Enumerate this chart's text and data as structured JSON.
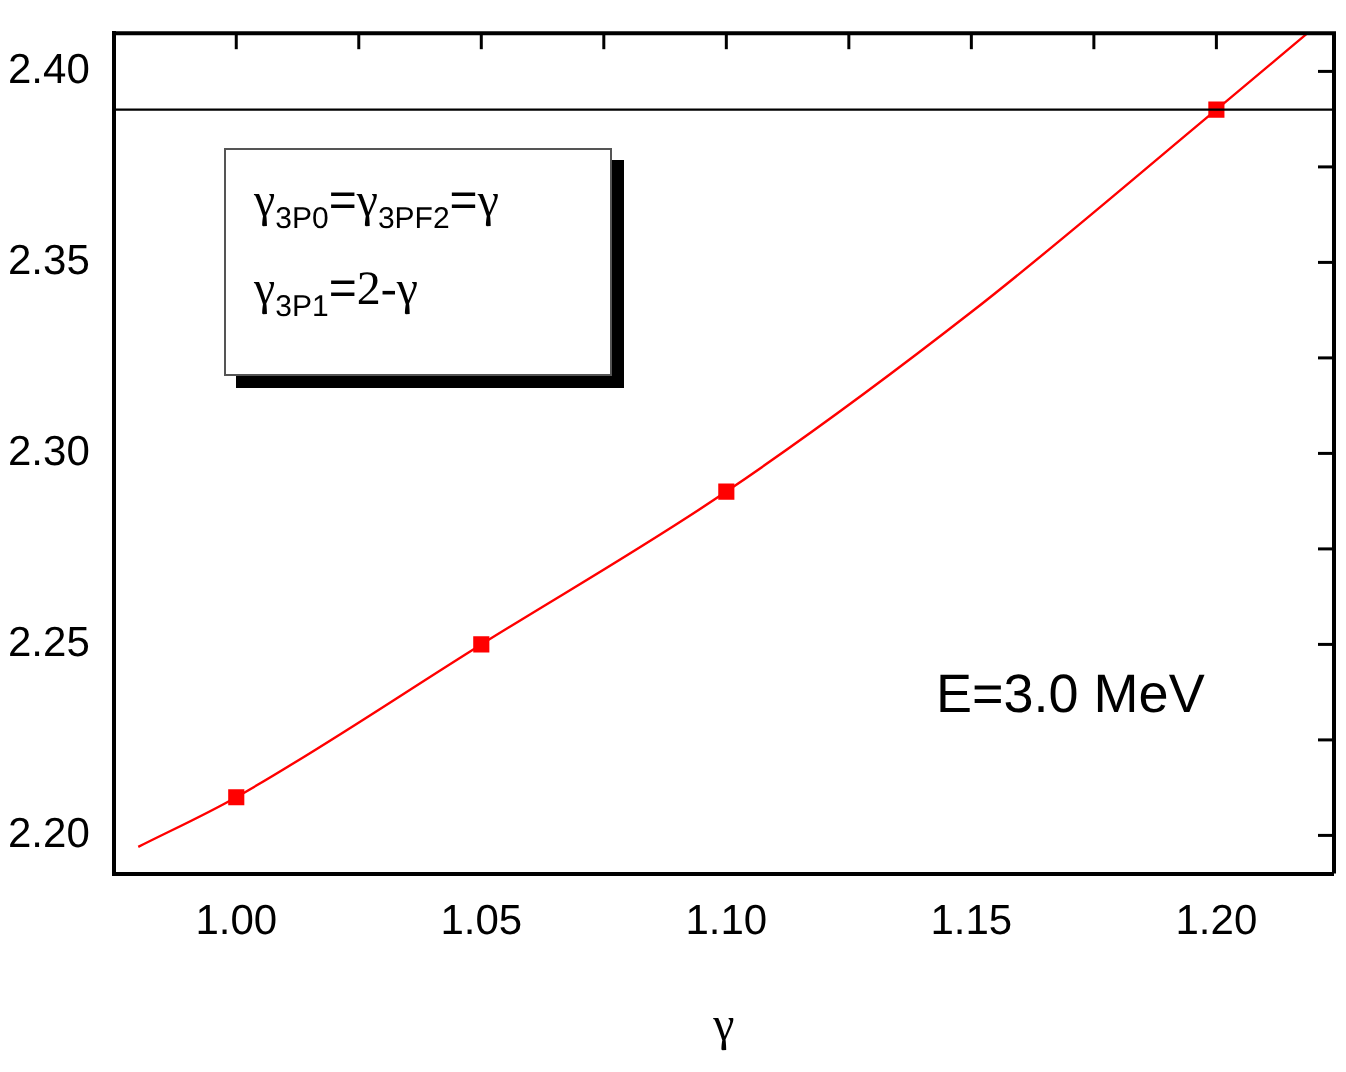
{
  "chart_data": {
    "type": "scatter",
    "xlabel": "γ",
    "annotations": [
      "γ$_{3P0}$=γ$_{3PF2}$=γ",
      "γ$_{3P1}$=2-γ",
      "E=3.0 MeV"
    ],
    "x": [
      1.0,
      1.05,
      1.1,
      1.2
    ],
    "series": [
      {
        "type": "scatter",
        "color": "#ff0000",
        "values": [
          2.21,
          2.25,
          2.29,
          2.39
        ],
        "marker": "square"
      },
      {
        "type": "line",
        "color": "#ff0000",
        "x": [
          0.98,
          1.0,
          1.05,
          1.1,
          1.15,
          1.2,
          1.2186
        ],
        "values": [
          2.197,
          2.21,
          2.25,
          2.29,
          2.337,
          2.39,
          2.41
        ],
        "marker": "none"
      }
    ],
    "ref_lines": [
      {
        "axis": "y",
        "value": 2.39,
        "color": "#000000"
      }
    ],
    "xlim": [
      0.975,
      1.224
    ],
    "ylim": [
      2.19,
      2.41
    ],
    "xticks": [
      {
        "value": 1.0,
        "label": "1.00"
      },
      {
        "value": 1.025,
        "label": null
      },
      {
        "value": 1.05,
        "label": "1.05"
      },
      {
        "value": 1.075,
        "label": null
      },
      {
        "value": 1.1,
        "label": "1.10"
      },
      {
        "value": 1.125,
        "label": null
      },
      {
        "value": 1.15,
        "label": "1.15"
      },
      {
        "value": 1.175,
        "label": null
      },
      {
        "value": 1.2,
        "label": "1.20"
      }
    ],
    "yticks": [
      {
        "value": 2.2,
        "label": "2.20"
      },
      {
        "value": 2.225,
        "label": null
      },
      {
        "value": 2.25,
        "label": "2.25"
      },
      {
        "value": 2.275,
        "label": null
      },
      {
        "value": 2.3,
        "label": "2.30"
      },
      {
        "value": 2.325,
        "label": null
      },
      {
        "value": 2.35,
        "label": "2.35"
      },
      {
        "value": 2.375,
        "label": null
      },
      {
        "value": 2.4,
        "label": "2.40"
      }
    ],
    "grid": false,
    "legend": false
  }
}
